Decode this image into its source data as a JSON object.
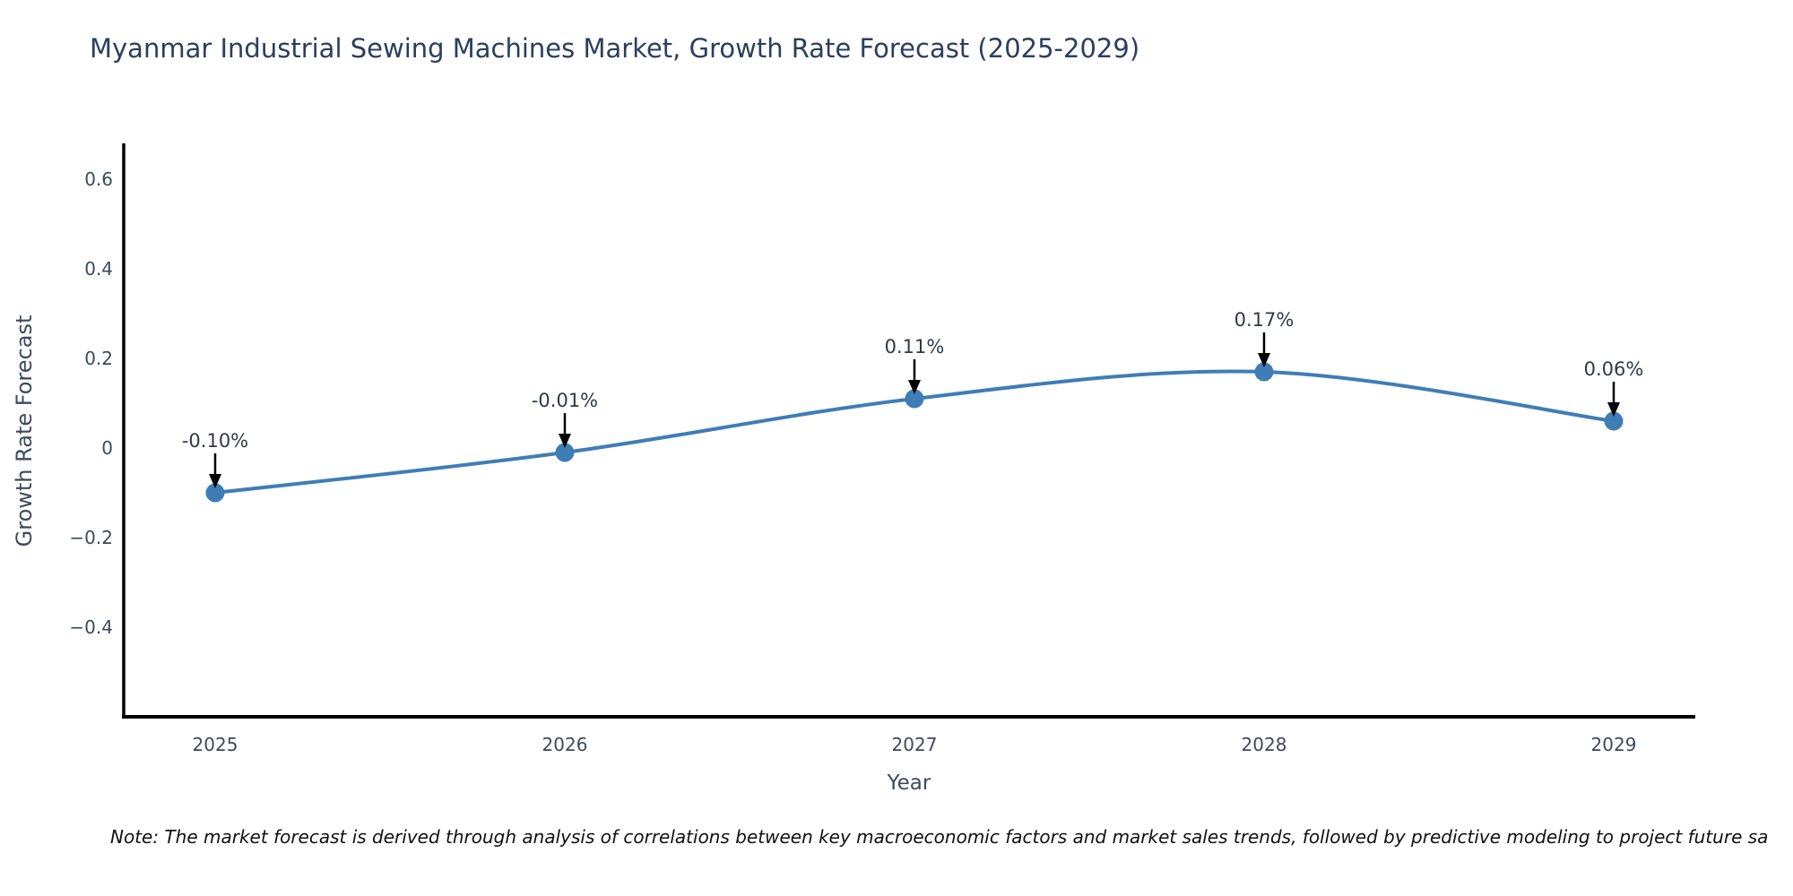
{
  "title": "Myanmar Industrial Sewing Machines Market, Growth Rate Forecast (2025-2029)",
  "note": "Note: The market forecast is derived through analysis of correlations between key macroeconomic factors and market sales trends, followed by predictive modeling to project future sa",
  "chart_data": {
    "type": "line",
    "title": "Myanmar Industrial Sewing Machines Market, Growth Rate Forecast (2025-2029)",
    "xlabel": "Year",
    "ylabel": "Growth Rate Forecast",
    "x": [
      2025,
      2026,
      2027,
      2028,
      2029
    ],
    "xtick_labels": [
      "2025",
      "2026",
      "2027",
      "2028",
      "2029"
    ],
    "series": [
      {
        "name": "Growth Rate Forecast",
        "values": [
          -0.1,
          -0.01,
          0.11,
          0.17,
          0.06
        ]
      }
    ],
    "point_labels": [
      "-0.10%",
      "-0.01%",
      "0.11%",
      "0.17%",
      "0.06%"
    ],
    "yticks": {
      "values": [
        0.6,
        0.4,
        0.2,
        0,
        -0.2,
        -0.4
      ],
      "labels": [
        "0.6",
        "0.4",
        "0.2",
        "0",
        "−0.2",
        "−0.4"
      ]
    },
    "ylim": [
      -0.6,
      0.67
    ],
    "grid": false,
    "legend": false,
    "line_shape": "spline",
    "line_color": "#3f7db5",
    "marker_color": "#3f7db5",
    "arrow_color": "#000000",
    "axis_color": "#000000"
  }
}
